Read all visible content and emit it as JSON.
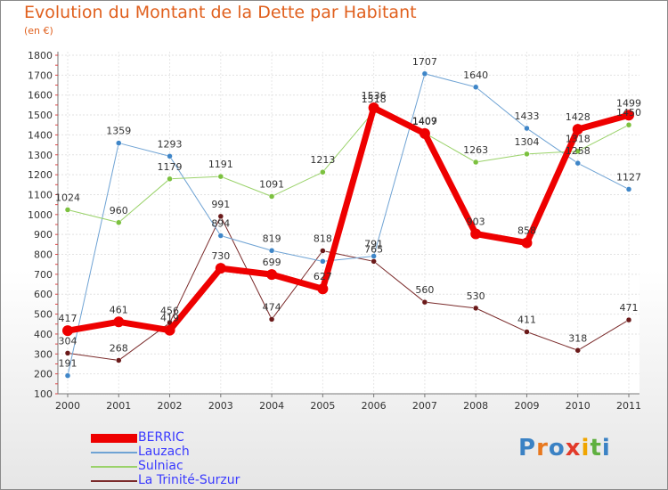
{
  "title": "Evolution du Montant de la Dette par Habitant",
  "subtitle": "(en €)",
  "logo": {
    "text": "Proxiti",
    "letter_colors": [
      "#3b82c4",
      "#e8781e",
      "#3b82c4",
      "#e23a2a",
      "#f0a500",
      "#5fb040",
      "#3b82c4"
    ]
  },
  "chart_data": {
    "type": "line",
    "x": [
      2000,
      2001,
      2002,
      2003,
      2004,
      2005,
      2006,
      2007,
      2008,
      2009,
      2010,
      2011
    ],
    "ylim": [
      100,
      1800
    ],
    "yticks": [
      100,
      200,
      300,
      400,
      500,
      600,
      700,
      800,
      900,
      1000,
      1100,
      1200,
      1300,
      1400,
      1500,
      1600,
      1700,
      1800
    ],
    "grid": true,
    "legend_position": "bottom",
    "series": [
      {
        "name": "La Trinité-Surzur",
        "color": "#7a2a2a",
        "dot": "#6b1a1a",
        "width": 1,
        "radius": 3,
        "values": [
          304,
          268,
          456,
          991,
          474,
          818,
          765,
          560,
          530,
          411,
          318,
          471
        ],
        "labels": [
          "304",
          "268",
          "456",
          "991",
          "474",
          "818",
          "765",
          "560",
          "530",
          "411",
          "318",
          "471"
        ]
      },
      {
        "name": "Lauzach",
        "color": "#6fa3d4",
        "dot": "#3f86c8",
        "width": 1,
        "radius": 3,
        "values": [
          191,
          1359,
          1293,
          894,
          819,
          765,
          791,
          1707,
          1640,
          1433,
          1258,
          1127
        ],
        "labels": [
          "191",
          "1359",
          "1293",
          "894",
          "819",
          "",
          "791",
          "1707",
          "1640",
          "1433",
          "1258",
          "1127"
        ]
      },
      {
        "name": "Sulniac",
        "color": "#9ad26a",
        "dot": "#7cc13f",
        "width": 1,
        "radius": 3,
        "values": [
          1024,
          960,
          1179,
          1191,
          1091,
          1213,
          1518,
          1409,
          1263,
          1304,
          1318,
          1450
        ],
        "labels": [
          "1024",
          "960",
          "1179",
          "1191",
          "1091",
          "1213",
          "1518",
          "1409",
          "1263",
          "1304",
          "1318",
          "1450"
        ]
      },
      {
        "name": "BERRIC",
        "color": "#ee0000",
        "dot": "#ee0000",
        "width": 7,
        "radius": 6,
        "values": [
          417,
          461,
          419,
          730,
          699,
          627,
          1536,
          1407,
          903,
          858,
          1428,
          1499
        ],
        "labels": [
          "417",
          "461",
          "419",
          "730",
          "699",
          "627",
          "1536",
          "1407",
          "903",
          "858",
          "1428",
          "1499"
        ]
      }
    ],
    "legend": [
      "BERRIC",
      "Lauzach",
      "Sulniac",
      "La Trinité-Surzur"
    ]
  }
}
